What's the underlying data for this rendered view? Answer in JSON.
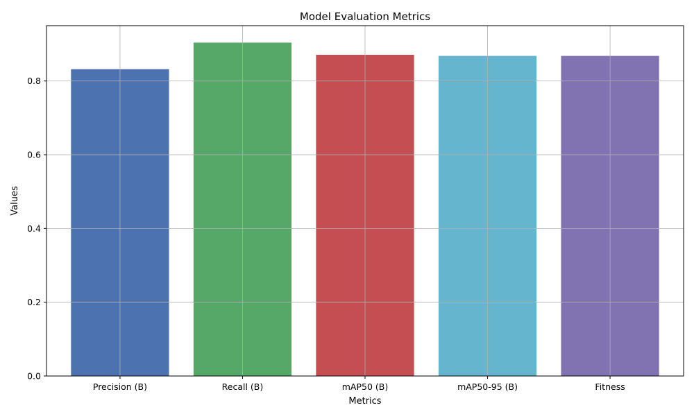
{
  "chart_data": {
    "type": "bar",
    "title": "Model Evaluation Metrics",
    "xlabel": "Metrics",
    "ylabel": "Values",
    "categories": [
      "Precision (B)",
      "Recall (B)",
      "mAP50 (B)",
      "mAP50-95 (B)",
      "Fitness"
    ],
    "values": [
      0.832,
      0.904,
      0.871,
      0.868,
      0.868
    ],
    "colors": [
      "#4c72b0",
      "#55a868",
      "#c44e52",
      "#64b5cd",
      "#8172b2"
    ],
    "ylim": [
      0,
      0.95
    ],
    "yticks": [
      0.0,
      0.2,
      0.4,
      0.6,
      0.8
    ],
    "ytick_labels": [
      "0.0",
      "0.2",
      "0.4",
      "0.6",
      "0.8"
    ],
    "grid": true,
    "legend": "none"
  }
}
